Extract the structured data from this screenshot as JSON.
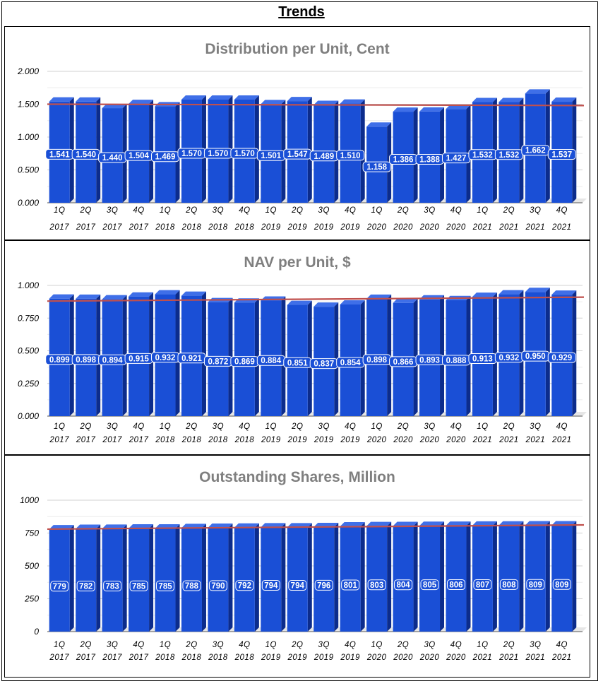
{
  "page": {
    "title": "Trends"
  },
  "colors": {
    "bar_front": "#1a4fd6",
    "bar_side": "#0c2c8c",
    "bar_top": "#3f6fe8",
    "trend_line": "#c0504d",
    "grid": "#d9d9d9"
  },
  "chart_data": [
    {
      "type": "bar",
      "title": "Distribution per Unit, Cent",
      "categories": [
        [
          "1Q",
          "2017"
        ],
        [
          "2Q",
          "2017"
        ],
        [
          "3Q",
          "2017"
        ],
        [
          "4Q",
          "2017"
        ],
        [
          "1Q",
          "2018"
        ],
        [
          "2Q",
          "2018"
        ],
        [
          "3Q",
          "2018"
        ],
        [
          "4Q",
          "2018"
        ],
        [
          "1Q",
          "2019"
        ],
        [
          "2Q",
          "2019"
        ],
        [
          "3Q",
          "2019"
        ],
        [
          "4Q",
          "2019"
        ],
        [
          "1Q",
          "2020"
        ],
        [
          "2Q",
          "2020"
        ],
        [
          "3Q",
          "2020"
        ],
        [
          "4Q",
          "2020"
        ],
        [
          "1Q",
          "2021"
        ],
        [
          "2Q",
          "2021"
        ],
        [
          "3Q",
          "2021"
        ],
        [
          "4Q",
          "2021"
        ]
      ],
      "values": [
        1.541,
        1.54,
        1.44,
        1.504,
        1.469,
        1.57,
        1.57,
        1.57,
        1.501,
        1.547,
        1.489,
        1.51,
        1.158,
        1.386,
        1.388,
        1.427,
        1.532,
        1.532,
        1.662,
        1.537
      ],
      "value_labels": [
        "1.541",
        "1.540",
        "1.440",
        "1.504",
        "1.469",
        "1.570",
        "1.570",
        "1.570",
        "1.501",
        "1.547",
        "1.489",
        "1.510",
        "1.158",
        "1.386",
        "1.388",
        "1.427",
        "1.532",
        "1.532",
        "1.662",
        "1.537"
      ],
      "yticks": [
        "2.000",
        "1.500",
        "1.000",
        "0.500",
        "0.000"
      ],
      "ylim": [
        0,
        2
      ],
      "trend": [
        1.5,
        1.48
      ]
    },
    {
      "type": "bar",
      "title": "NAV per Unit, $",
      "categories": [
        [
          "1Q",
          "2017"
        ],
        [
          "2Q",
          "2017"
        ],
        [
          "3Q",
          "2017"
        ],
        [
          "4Q",
          "2017"
        ],
        [
          "1Q",
          "2018"
        ],
        [
          "2Q",
          "2018"
        ],
        [
          "3Q",
          "2018"
        ],
        [
          "4Q",
          "2018"
        ],
        [
          "1Q",
          "2019"
        ],
        [
          "2Q",
          "2019"
        ],
        [
          "3Q",
          "2019"
        ],
        [
          "4Q",
          "2019"
        ],
        [
          "1Q",
          "2020"
        ],
        [
          "2Q",
          "2020"
        ],
        [
          "3Q",
          "2020"
        ],
        [
          "4Q",
          "2020"
        ],
        [
          "1Q",
          "2021"
        ],
        [
          "2Q",
          "2021"
        ],
        [
          "3Q",
          "2021"
        ],
        [
          "4Q",
          "2021"
        ]
      ],
      "values": [
        0.899,
        0.898,
        0.894,
        0.915,
        0.932,
        0.921,
        0.872,
        0.869,
        0.884,
        0.851,
        0.837,
        0.854,
        0.898,
        0.866,
        0.893,
        0.888,
        0.913,
        0.932,
        0.95,
        0.929
      ],
      "value_labels": [
        "0.899",
        "0.898",
        "0.894",
        "0.915",
        "0.932",
        "0.921",
        "0.872",
        "0.869",
        "0.884",
        "0.851",
        "0.837",
        "0.854",
        "0.898",
        "0.866",
        "0.893",
        "0.888",
        "0.913",
        "0.932",
        "0.950",
        "0.929"
      ],
      "yticks": [
        "1.000",
        "0.750",
        "0.500",
        "0.250",
        "0.000"
      ],
      "ylim": [
        0,
        1
      ],
      "trend": [
        0.88,
        0.91
      ]
    },
    {
      "type": "bar",
      "title": "Outstanding Shares, Million",
      "categories": [
        [
          "1Q",
          "2017"
        ],
        [
          "2Q",
          "2017"
        ],
        [
          "3Q",
          "2017"
        ],
        [
          "4Q",
          "2017"
        ],
        [
          "1Q",
          "2018"
        ],
        [
          "2Q",
          "2018"
        ],
        [
          "3Q",
          "2018"
        ],
        [
          "4Q",
          "2018"
        ],
        [
          "1Q",
          "2019"
        ],
        [
          "2Q",
          "2019"
        ],
        [
          "3Q",
          "2019"
        ],
        [
          "4Q",
          "2019"
        ],
        [
          "1Q",
          "2020"
        ],
        [
          "2Q",
          "2020"
        ],
        [
          "3Q",
          "2020"
        ],
        [
          "4Q",
          "2020"
        ],
        [
          "1Q",
          "2021"
        ],
        [
          "2Q",
          "2021"
        ],
        [
          "3Q",
          "2021"
        ],
        [
          "4Q",
          "2021"
        ]
      ],
      "values": [
        779,
        782,
        783,
        785,
        785,
        788,
        790,
        792,
        794,
        794,
        796,
        801,
        803,
        804,
        805,
        806,
        807,
        808,
        809,
        809
      ],
      "value_labels": [
        "779",
        "782",
        "783",
        "785",
        "785",
        "788",
        "790",
        "792",
        "794",
        "794",
        "796",
        "801",
        "803",
        "804",
        "805",
        "806",
        "807",
        "808",
        "809",
        "809"
      ],
      "yticks": [
        "1000",
        "750",
        "500",
        "250",
        "0"
      ],
      "ylim": [
        0,
        1000
      ],
      "trend": [
        780,
        812
      ]
    }
  ]
}
